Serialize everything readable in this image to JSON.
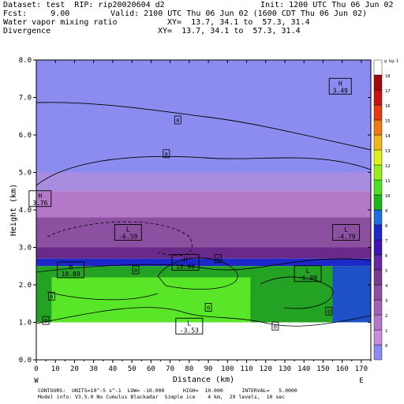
{
  "header": {
    "dataset": "Dataset: test  RIP: rip20020604 d2",
    "init": "Init: 1200 UTC Thu 06 Jun 02",
    "fcst": "Fcst:     9.00",
    "valid": "Valid: 2100 UTC Thu 06 Jun 02 (1600 CDT Thu 06 Jun 02)",
    "field1_name": "Water vapor mixing ratio",
    "field1_xy": "XY=  13.7, 34.1 to  57.3, 31.4",
    "field2_name": "Divergence",
    "field2_xy": "XY=  13.7, 34.1 to  57.3, 31.4"
  },
  "footer": {
    "line1": "CONTOURS:  UNITS=10^-5 s^-1  LOW= -10.000      HIGH=  10.000      INTERVAL=   5.0000",
    "line2": "Model info: V3.5.0 No Cumulus Blackadar  Simple ice    4 km,  29 levels,  10 sec"
  },
  "colorbar": {
    "unit_label": "g kg-1",
    "levels": [
      "0",
      "1",
      "2",
      "3",
      "4",
      "5",
      "6",
      "7",
      "8",
      "9",
      "10",
      "11",
      "12",
      "13",
      "14",
      "15",
      "16",
      "17",
      "18"
    ],
    "colors": [
      "#8c8cf0",
      "#c88cdc",
      "#b478c8",
      "#a064b4",
      "#8c50a0",
      "#783c8c",
      "#6428a0",
      "#3c14b4",
      "#1e28c8",
      "#1e6edc",
      "#1eb41e",
      "#50dc28",
      "#96ec1e",
      "#dcf01e",
      "#f0b41e",
      "#f07814",
      "#e63c14",
      "#c81414",
      "#a00a0a",
      "#ffffff"
    ]
  },
  "chart_data": {
    "type": "heatmap",
    "title": "",
    "xlabel": "Distance (km)",
    "ylabel": "Height (km)",
    "xlim": [
      0,
      175
    ],
    "ylim": [
      0,
      8
    ],
    "xticks": [
      0,
      10,
      20,
      30,
      40,
      50,
      60,
      70,
      80,
      90,
      100,
      110,
      120,
      130,
      140,
      150,
      160,
      170
    ],
    "yticks": [
      0.0,
      1.0,
      2.0,
      3.0,
      4.0,
      5.0,
      6.0,
      7.0,
      8.0
    ],
    "y_tick_labels": [
      "0.0",
      "1.0",
      "2.0",
      "3.0",
      "4.0",
      "5.0",
      "6.0",
      "7.0",
      "8.0"
    ],
    "x_end_labels": {
      "left": "W",
      "right": "E"
    },
    "bands": [
      {
        "level": "0",
        "color": "#8c8cf0",
        "y_bottom": 5.0,
        "y_top": 8.0
      },
      {
        "level": "1",
        "color": "#a78ce0",
        "y_bottom": 4.5,
        "y_top": 5.0
      },
      {
        "level": "2",
        "color": "#b478c8",
        "y_bottom": 3.8,
        "y_top": 4.5
      },
      {
        "level": "3",
        "color": "#8c50a0",
        "y_bottom": 3.0,
        "y_top": 3.8
      },
      {
        "level": "4",
        "color": "#6a2a8a",
        "y_bottom": 2.7,
        "y_top": 3.0
      },
      {
        "level": "5",
        "color": "#1e28c8",
        "y_bottom": 2.5,
        "y_top": 2.7
      },
      {
        "level": "8",
        "color": "#24a224",
        "y_bottom": 1.0,
        "y_top": 2.5
      },
      {
        "level": "10",
        "color": "#5ae628",
        "y_bottom": 1.0,
        "y_top": 2.2,
        "x_from": 8,
        "x_to": 112
      },
      {
        "level": "7",
        "color": "#1e50c8",
        "y_bottom": 1.0,
        "y_top": 2.5,
        "x_from": 155,
        "x_to": 175
      }
    ],
    "terrain_height_km": 0.95,
    "extrema": [
      {
        "kind": "H",
        "value": "3.49",
        "x": 159,
        "y": 7.3
      },
      {
        "kind": "H",
        "value": "3.76",
        "x": 2,
        "y": 4.3
      },
      {
        "kind": "L",
        "value": "-6.59",
        "x": 48,
        "y": 3.4
      },
      {
        "kind": "L",
        "value": "-4.79",
        "x": 162,
        "y": 3.4
      },
      {
        "kind": "H",
        "value": "10.89",
        "x": 18,
        "y": 2.4
      },
      {
        "kind": "H",
        "value": "18.00",
        "x": 78,
        "y": 2.6
      },
      {
        "kind": "L",
        "value": "-6.89",
        "x": 142,
        "y": 2.3
      },
      {
        "kind": "L",
        "value": "-3.53",
        "x": 80,
        "y": 0.9
      }
    ],
    "zero_labels": [
      {
        "text": "0",
        "x": 74,
        "y": 6.4
      },
      {
        "text": "0",
        "x": 68,
        "y": 5.5
      },
      {
        "text": "0",
        "x": 95,
        "y": 2.7
      },
      {
        "text": "0",
        "x": 52,
        "y": 2.4
      },
      {
        "text": "0",
        "x": 8,
        "y": 1.7
      },
      {
        "text": "0",
        "x": 5,
        "y": 1.05
      },
      {
        "text": "0",
        "x": 90,
        "y": 1.4
      },
      {
        "text": "0",
        "x": 153,
        "y": 1.3
      },
      {
        "text": "0",
        "x": 125,
        "y": 0.9
      }
    ]
  }
}
